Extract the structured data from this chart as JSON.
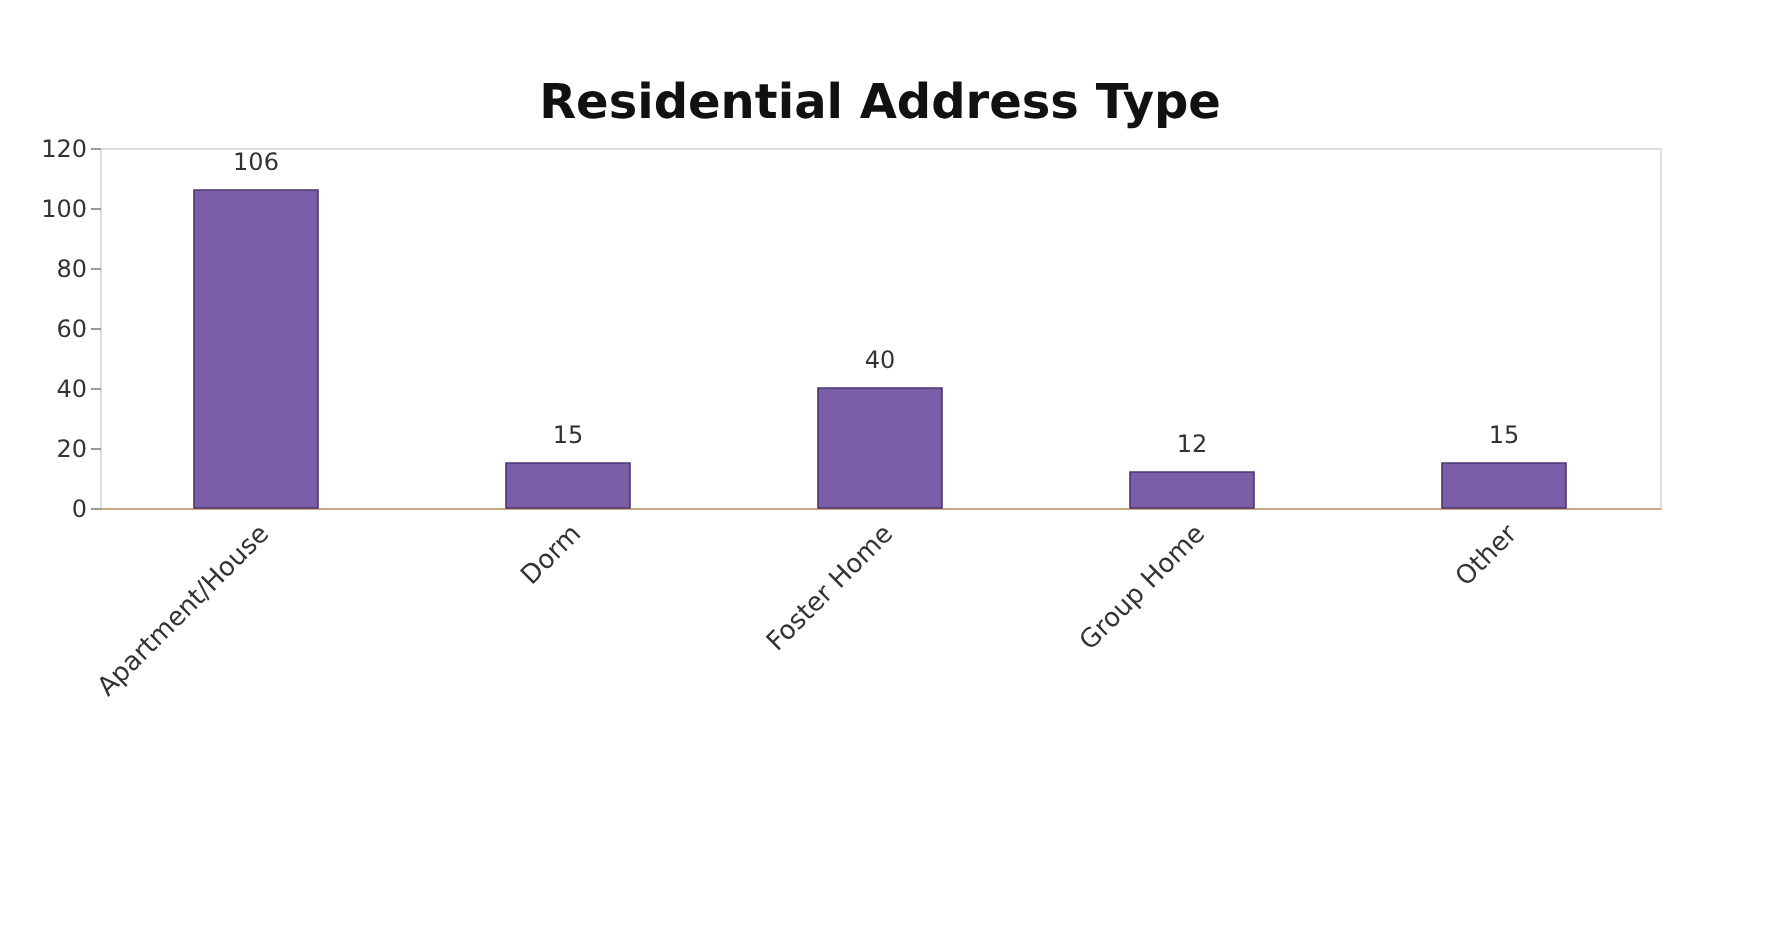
{
  "chart_data": {
    "type": "bar",
    "title": "Residential Address Type",
    "categories": [
      "Apartment/House",
      "Dorm",
      "Foster Home",
      "Group Home",
      "Other"
    ],
    "values": [
      106,
      15,
      40,
      12,
      15
    ],
    "color": "#7b5ea7",
    "ylim": [
      0,
      120
    ],
    "yticks": [
      0,
      20,
      40,
      60,
      80,
      100,
      120
    ],
    "data_labels": true
  }
}
